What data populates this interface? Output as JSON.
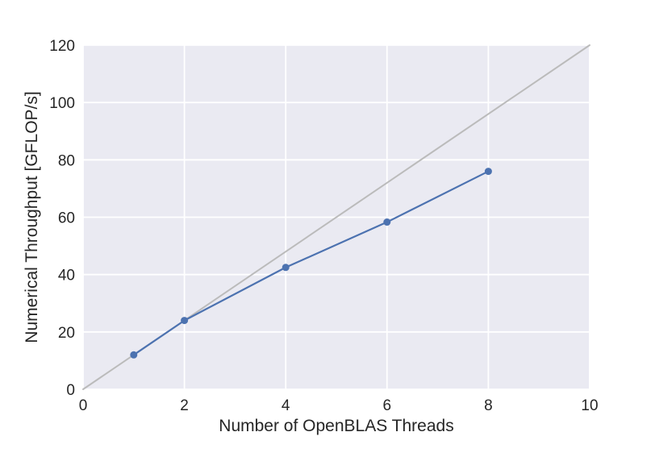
{
  "chart_data": {
    "type": "line",
    "title": "",
    "xlabel": "Number of OpenBLAS Threads",
    "ylabel": "Numerical Throughput [GFLOP/s]",
    "xlim": [
      0,
      10
    ],
    "ylim": [
      0,
      120
    ],
    "xticks": [
      0,
      2,
      4,
      6,
      8,
      10
    ],
    "yticks": [
      0,
      20,
      40,
      60,
      80,
      100,
      120
    ],
    "xtick_labels": [
      "0",
      "2",
      "4",
      "6",
      "8",
      "10"
    ],
    "ytick_labels": [
      "0",
      "20",
      "40",
      "60",
      "80",
      "100",
      "120"
    ],
    "grid": true,
    "legend": "none",
    "series": [
      {
        "role": "reference",
        "x": [
          0,
          10
        ],
        "y": [
          0,
          120
        ],
        "color": "#bbbbbb",
        "markers": false
      },
      {
        "role": "measured",
        "x": [
          1,
          2,
          4,
          6,
          8
        ],
        "y": [
          12,
          24,
          42.5,
          58.3,
          76
        ],
        "color": "#4c72b0",
        "markers": true
      }
    ],
    "colors": {
      "plot_background": "#eaeaf2",
      "grid": "#ffffff",
      "text": "#262626"
    }
  }
}
